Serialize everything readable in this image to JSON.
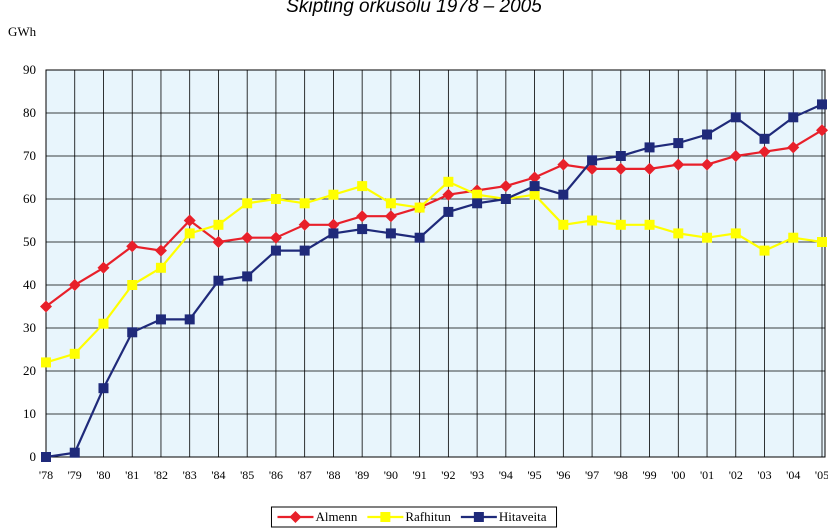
{
  "chart_data": {
    "type": "line",
    "title": "Skipting orkusölu 1978 – 2005",
    "ylabel": "GWh",
    "categories": [
      "'78",
      "'79",
      "'80",
      "'81",
      "'82",
      "'83",
      "'84",
      "'85",
      "'86",
      "'87",
      "'88",
      "'89",
      "'90",
      "'91",
      "'92",
      "'93",
      "'94",
      "'95",
      "'96",
      "'97",
      "'98",
      "'99",
      "'00",
      "'01",
      "'02",
      "'03",
      "'04",
      "'05"
    ],
    "series": [
      {
        "name": "Almenn",
        "color": "#e8202a",
        "marker": "diamond",
        "values": [
          35,
          40,
          44,
          49,
          48,
          55,
          50,
          51,
          51,
          54,
          54,
          56,
          56,
          58,
          61,
          62,
          63,
          65,
          68,
          67,
          67,
          67,
          68,
          68,
          70,
          71,
          72,
          76
        ]
      },
      {
        "name": "Rafhitun",
        "color": "#ffff00",
        "marker": "square",
        "values": [
          22,
          24,
          31,
          40,
          44,
          52,
          54,
          59,
          60,
          59,
          61,
          63,
          59,
          58,
          64,
          61,
          60,
          61,
          54,
          55,
          54,
          54,
          52,
          51,
          52,
          48,
          51,
          50
        ]
      },
      {
        "name": "Hitaveita",
        "color": "#1f2a7a",
        "marker": "square",
        "values": [
          0,
          1,
          16,
          29,
          32,
          32,
          41,
          42,
          48,
          48,
          52,
          53,
          52,
          51,
          57,
          59,
          60,
          63,
          61,
          69,
          70,
          72,
          73,
          75,
          79,
          74,
          79,
          82
        ]
      }
    ],
    "ylim": [
      0,
      90
    ],
    "yticks": [
      0,
      10,
      20,
      30,
      40,
      50,
      60,
      70,
      80,
      90
    ],
    "grid": true,
    "legend": "bottom"
  }
}
